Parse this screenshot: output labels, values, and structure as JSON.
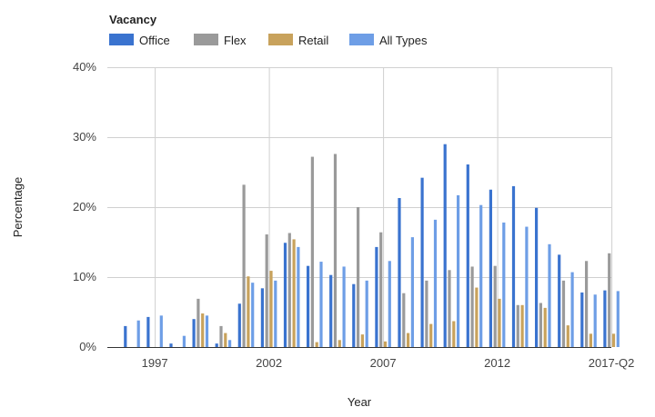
{
  "chart_data": {
    "type": "bar",
    "title": "Vacancy",
    "xlabel": "Year",
    "ylabel": "Percentage",
    "ylim": [
      0,
      40
    ],
    "y_ticks": [
      "0%",
      "10%",
      "20%",
      "30%",
      "40%"
    ],
    "x_tick_labels": [
      "1997",
      "2002",
      "2007",
      "2012",
      "2017-Q2"
    ],
    "grid": true,
    "legend_position": "top-left",
    "categories": [
      "1996",
      "1997",
      "1998",
      "1999",
      "2000",
      "2001",
      "2002",
      "2003",
      "2004",
      "2005",
      "2006",
      "2007",
      "2008",
      "2009",
      "2010",
      "2011",
      "2012",
      "2013",
      "2014",
      "2015",
      "2016",
      "2017-Q2"
    ],
    "series": [
      {
        "name": "Office",
        "color": "#3a73cf",
        "values": [
          3.0,
          4.3,
          0.5,
          4.0,
          0.5,
          6.2,
          8.4,
          14.9,
          11.6,
          10.3,
          9.0,
          14.3,
          21.3,
          24.2,
          29.0,
          26.1,
          22.5,
          23.0,
          19.9,
          13.2,
          7.8,
          8.1
        ]
      },
      {
        "name": "Flex",
        "color": "#9a9a9a",
        "values": [
          0,
          0,
          0,
          6.9,
          3.0,
          23.2,
          16.1,
          16.3,
          27.2,
          27.6,
          20.0,
          16.4,
          7.7,
          9.5,
          11.0,
          11.5,
          11.6,
          6.0,
          6.3,
          9.5,
          12.3,
          13.4
        ]
      },
      {
        "name": "Retail",
        "color": "#c8a25c",
        "values": [
          0,
          0,
          0,
          4.8,
          2.0,
          10.1,
          10.9,
          15.4,
          0.7,
          1.0,
          1.8,
          0.8,
          2.0,
          3.3,
          3.7,
          8.5,
          6.9,
          6.0,
          5.6,
          3.1,
          1.9,
          1.9
        ]
      },
      {
        "name": "All Types",
        "color": "#6e9ee6",
        "values": [
          3.8,
          4.5,
          1.6,
          4.5,
          1.0,
          9.2,
          9.5,
          14.3,
          12.2,
          11.5,
          9.5,
          12.3,
          15.7,
          18.2,
          21.7,
          20.3,
          17.8,
          17.2,
          14.7,
          10.7,
          7.5,
          8.0
        ]
      }
    ]
  }
}
